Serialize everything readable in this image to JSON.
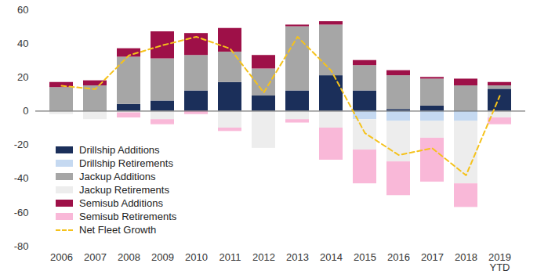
{
  "chart_data": {
    "type": "bar",
    "stacked": true,
    "grid": false,
    "legend": "lower left",
    "categories": [
      "2006",
      "2007",
      "2008",
      "2009",
      "2010",
      "2011",
      "2012",
      "2013",
      "2014",
      "2015",
      "2016",
      "2017",
      "2018",
      "2019 YTD"
    ],
    "ylim": [
      -80,
      60
    ],
    "yticks": [
      -80,
      -60,
      -40,
      -20,
      0,
      20,
      40,
      60
    ],
    "series": [
      {
        "name": "Drillship Additions",
        "type": "bar",
        "color": "#1b2f5a",
        "values": [
          0,
          0,
          4,
          6,
          12,
          17,
          9,
          12,
          21,
          12,
          1,
          3,
          0,
          13
        ]
      },
      {
        "name": "Drillship Retirements",
        "type": "bar",
        "color": "#c5d9f1",
        "values": [
          0,
          0,
          0,
          0,
          0,
          0,
          0,
          0,
          0,
          -5,
          -6,
          -6,
          -6,
          0
        ]
      },
      {
        "name": "Jackup Additions",
        "type": "bar",
        "color": "#a6a6a6",
        "values": [
          14,
          15,
          28,
          25,
          21,
          18,
          16,
          38,
          30,
          15,
          20,
          16,
          15,
          2
        ]
      },
      {
        "name": "Jackup Retirements",
        "type": "bar",
        "color": "#ededed",
        "values": [
          -2,
          -5,
          -1,
          -5,
          0,
          -10,
          -22,
          -5,
          -10,
          -18,
          -24,
          -10,
          -37,
          -4
        ]
      },
      {
        "name": "Semisub Additions",
        "type": "bar",
        "color": "#9e1048",
        "values": [
          3,
          3,
          5,
          16,
          13,
          14,
          8,
          1,
          2,
          3,
          3,
          1,
          4,
          2
        ]
      },
      {
        "name": "Semisub Retirements",
        "type": "bar",
        "color": "#f9b8d8",
        "values": [
          0,
          0,
          -3,
          -3,
          -2,
          -2,
          0,
          -2,
          -19,
          -20,
          -20,
          -26,
          -14,
          -4
        ]
      },
      {
        "name": "Net Fleet Growth",
        "type": "line",
        "line_style": "dashed",
        "color": "#f5c21b",
        "values": [
          15,
          13,
          33,
          39,
          44,
          37,
          11,
          44,
          24,
          -13,
          -26,
          -22,
          -38,
          9
        ]
      }
    ]
  }
}
